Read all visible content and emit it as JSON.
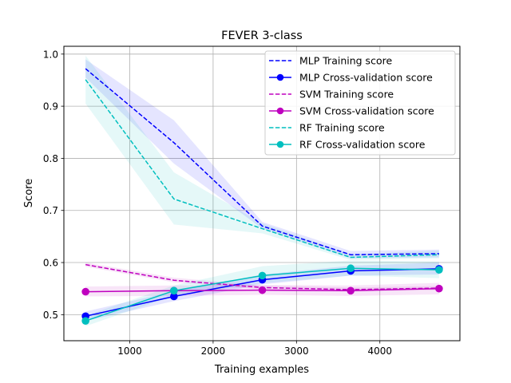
{
  "chart_data": {
    "type": "line",
    "title": "FEVER 3-class",
    "xlabel": "Training examples",
    "ylabel": "Score",
    "xlim": [
      210,
      4960
    ],
    "ylim": [
      0.45,
      1.015
    ],
    "xticks": [
      1000,
      2000,
      3000,
      4000
    ],
    "xtick_labels": [
      "1000",
      "2000",
      "3000",
      "4000"
    ],
    "yticks": [
      0.5,
      0.6,
      0.7,
      0.8,
      0.9,
      1.0
    ],
    "ytick_labels": [
      "0.5",
      "0.6",
      "0.7",
      "0.8",
      "0.9",
      "1.0"
    ],
    "grid": true,
    "legend_position": "upper-right",
    "x": [
      470,
      1530,
      2590,
      3650,
      4710
    ],
    "series": [
      {
        "name": "MLP Training score",
        "style": "dashed",
        "marker": false,
        "color": "#0000ff",
        "values": [
          0.972,
          0.83,
          0.67,
          0.615,
          0.617
        ],
        "band": [
          [
            0.955,
            0.99
          ],
          [
            0.79,
            0.873
          ],
          [
            0.665,
            0.678
          ],
          [
            0.608,
            0.622
          ],
          [
            0.61,
            0.625
          ]
        ]
      },
      {
        "name": "MLP Cross-validation score",
        "style": "solid",
        "marker": true,
        "color": "#0000ff",
        "values": [
          0.497,
          0.535,
          0.567,
          0.584,
          0.588
        ],
        "band": [
          [
            0.488,
            0.506
          ],
          [
            0.526,
            0.545
          ],
          [
            0.558,
            0.577
          ],
          [
            0.575,
            0.594
          ],
          [
            0.577,
            0.6
          ]
        ]
      },
      {
        "name": "SVM Training score",
        "style": "dashed",
        "marker": false,
        "color": "#bf00bf",
        "values": [
          0.596,
          0.566,
          0.552,
          0.548,
          0.551
        ],
        "band": [
          [
            0.592,
            0.6
          ],
          [
            0.562,
            0.571
          ],
          [
            0.548,
            0.556
          ],
          [
            0.544,
            0.552
          ],
          [
            0.547,
            0.555
          ]
        ]
      },
      {
        "name": "SVM Cross-validation score",
        "style": "solid",
        "marker": true,
        "color": "#bf00bf",
        "values": [
          0.544,
          0.546,
          0.547,
          0.546,
          0.55
        ],
        "band": [
          [
            0.535,
            0.554
          ],
          [
            0.536,
            0.556
          ],
          [
            0.538,
            0.557
          ],
          [
            0.536,
            0.556
          ],
          [
            0.539,
            0.561
          ]
        ]
      },
      {
        "name": "RF Training score",
        "style": "dashed",
        "marker": false,
        "color": "#00bfbf",
        "values": [
          0.951,
          0.722,
          0.665,
          0.61,
          0.615
        ],
        "band": [
          [
            0.905,
            0.997
          ],
          [
            0.673,
            0.773
          ],
          [
            0.656,
            0.675
          ],
          [
            0.605,
            0.616
          ],
          [
            0.608,
            0.623
          ]
        ]
      },
      {
        "name": "RF Cross-validation score",
        "style": "solid",
        "marker": true,
        "color": "#00bfbf",
        "values": [
          0.488,
          0.546,
          0.575,
          0.589,
          0.586
        ],
        "band": [
          [
            0.478,
            0.498
          ],
          [
            0.536,
            0.556
          ],
          [
            0.56,
            0.593
          ],
          [
            0.575,
            0.604
          ],
          [
            0.57,
            0.602
          ]
        ]
      }
    ]
  }
}
